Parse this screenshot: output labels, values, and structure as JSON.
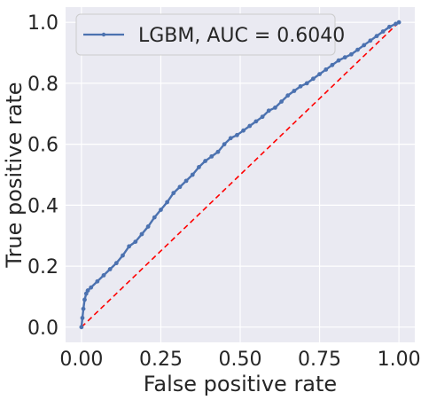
{
  "chart_data": {
    "type": "line",
    "xlabel": "False positive rate",
    "ylabel": "True positive rate",
    "xlim": [
      -0.05,
      1.05
    ],
    "ylim": [
      -0.05,
      1.05
    ],
    "x_ticks": [
      0.0,
      0.25,
      0.5,
      0.75,
      1.0
    ],
    "x_tick_labels": [
      "0.00",
      "0.25",
      "0.50",
      "0.75",
      "1.00"
    ],
    "y_ticks": [
      0.0,
      0.2,
      0.4,
      0.6,
      0.8,
      1.0
    ],
    "y_tick_labels": [
      "0.0",
      "0.2",
      "0.4",
      "0.6",
      "0.8",
      "1.0"
    ],
    "grid": true,
    "legend_position": "top-left",
    "series": [
      {
        "name": "LGBM, AUC = 0.6040",
        "color": "#4c72b0",
        "marker": "circle",
        "x": [
          0.0,
          0.003,
          0.006,
          0.01,
          0.015,
          0.02,
          0.03,
          0.05,
          0.07,
          0.09,
          0.11,
          0.13,
          0.15,
          0.17,
          0.19,
          0.21,
          0.23,
          0.25,
          0.27,
          0.29,
          0.31,
          0.33,
          0.35,
          0.37,
          0.39,
          0.41,
          0.43,
          0.45,
          0.47,
          0.49,
          0.51,
          0.53,
          0.55,
          0.57,
          0.59,
          0.61,
          0.63,
          0.65,
          0.67,
          0.69,
          0.71,
          0.73,
          0.75,
          0.77,
          0.79,
          0.81,
          0.83,
          0.85,
          0.87,
          0.89,
          0.91,
          0.93,
          0.95,
          0.97,
          0.99,
          1.0
        ],
        "y": [
          0.0,
          0.03,
          0.06,
          0.09,
          0.11,
          0.12,
          0.13,
          0.15,
          0.17,
          0.19,
          0.21,
          0.235,
          0.265,
          0.28,
          0.305,
          0.33,
          0.36,
          0.385,
          0.41,
          0.44,
          0.46,
          0.48,
          0.5,
          0.525,
          0.545,
          0.56,
          0.575,
          0.6,
          0.62,
          0.63,
          0.645,
          0.66,
          0.675,
          0.69,
          0.71,
          0.72,
          0.74,
          0.76,
          0.775,
          0.79,
          0.8,
          0.815,
          0.83,
          0.845,
          0.86,
          0.875,
          0.885,
          0.895,
          0.91,
          0.925,
          0.94,
          0.955,
          0.97,
          0.985,
          0.995,
          1.0
        ]
      },
      {
        "name": "",
        "color": "#ff0000",
        "style": "dashed",
        "x": [
          0.0,
          1.0
        ],
        "y": [
          0.0,
          1.0
        ]
      }
    ]
  }
}
